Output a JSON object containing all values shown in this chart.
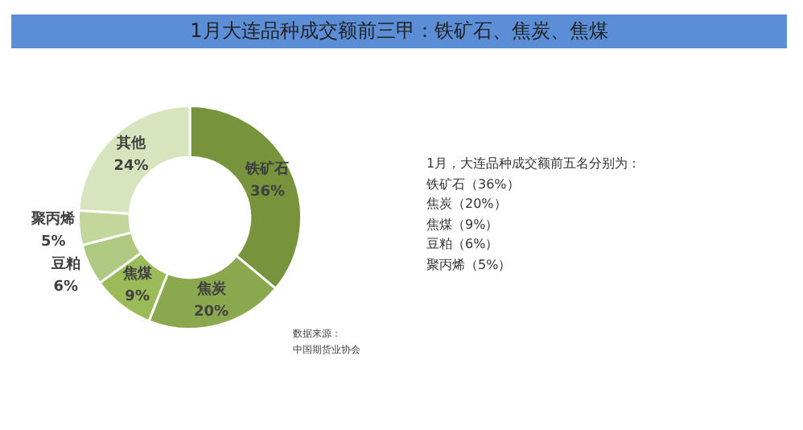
{
  "chart_data": {
    "type": "donut",
    "title": "1月大连品种成交额前三甲：铁矿石、焦炭、焦煤",
    "categories": [
      "铁矿石",
      "焦炭",
      "焦煤",
      "豆粕",
      "聚丙烯",
      "其他"
    ],
    "values": [
      36,
      20,
      9,
      6,
      5,
      24
    ],
    "value_labels": [
      "36%",
      "20%",
      "9%",
      "6%",
      "5%",
      "24%"
    ],
    "colors": [
      "#77933c",
      "#8aa84e",
      "#9bbb59",
      "#b0c982",
      "#c3d69b",
      "#d7e4bd"
    ],
    "legend": false,
    "annotations": [
      "1月，大连品种成交额前五名分别为：",
      "铁矿石（36%）",
      "焦炭（20%）",
      "焦煤（9%）",
      "豆粕（6%）",
      "聚丙烯（5%）",
      "数据来源：",
      "中国期货业协会"
    ]
  }
}
